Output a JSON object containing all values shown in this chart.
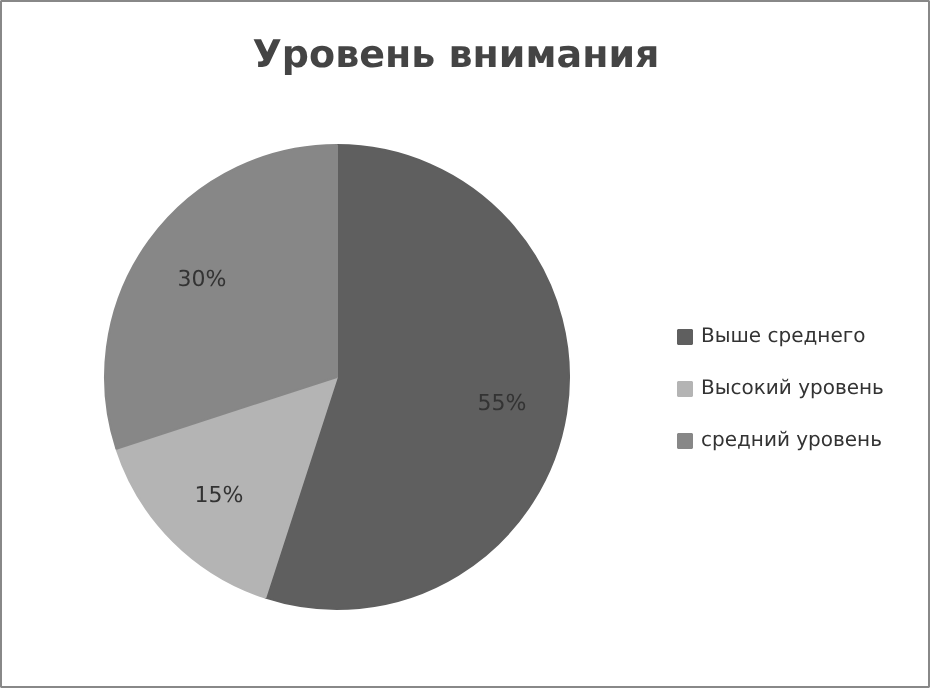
{
  "chart_data": {
    "type": "pie",
    "title": "Уровень внимания",
    "categories": [
      "Выше среднего",
      "Высокий уровень",
      "средний уровень"
    ],
    "values": [
      55,
      15,
      30
    ],
    "colors": [
      "#5f5f5f",
      "#b4b4b4",
      "#878787"
    ],
    "value_labels": [
      "55%",
      "15%",
      "30%"
    ],
    "legend": "right"
  }
}
